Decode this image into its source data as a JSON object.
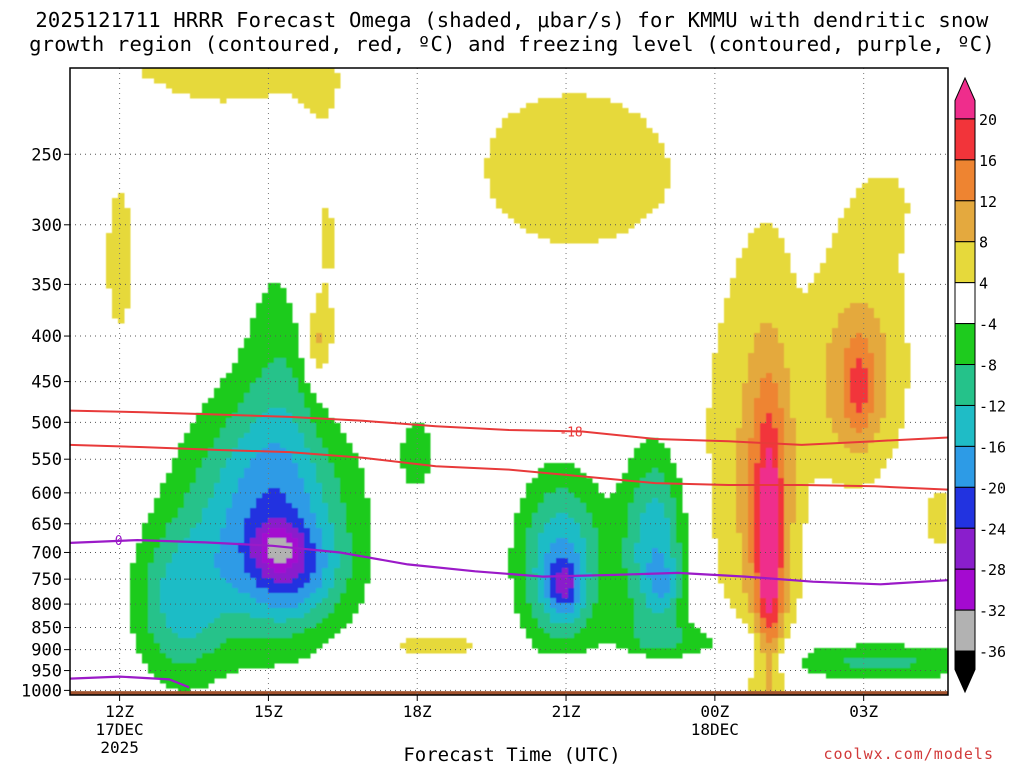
{
  "title": {
    "line1": "2025121711 HRRR Forecast Omega (shaded, μbar/s) for KMMU with dendritic snow",
    "line2": "growth region (contoured, red, ºC) and freezing level (contoured, purple, ºC)"
  },
  "credit": "coolwx.com/models",
  "chart_data": {
    "type": "heatmap",
    "xlabel": "Forecast Time (UTC)",
    "ylabel": "",
    "x_ticks": [
      {
        "label": "12Z",
        "sub": [
          "17DEC",
          "2025"
        ],
        "hour": 0
      },
      {
        "label": "15Z",
        "sub": [],
        "hour": 3
      },
      {
        "label": "18Z",
        "sub": [],
        "hour": 6
      },
      {
        "label": "21Z",
        "sub": [],
        "hour": 9
      },
      {
        "label": "00Z",
        "sub": [
          "18DEC"
        ],
        "hour": 12
      },
      {
        "label": "03Z",
        "sub": [],
        "hour": 15
      }
    ],
    "x_range_hours": [
      -1,
      16.7
    ],
    "y_axis": "pressure (hPa), inverted",
    "y_ticks": [
      250,
      300,
      350,
      400,
      450,
      500,
      550,
      600,
      650,
      700,
      750,
      800,
      850,
      900,
      950,
      1000
    ],
    "y_range": [
      200,
      1012
    ],
    "grid": true,
    "colorbar": {
      "unit": "μbar/s",
      "labels": [
        "20",
        "16",
        "12",
        "8",
        "4",
        "-4",
        "-8",
        "-12",
        "-16",
        "-20",
        "-24",
        "-28",
        "-32",
        "-36"
      ],
      "bands": [
        {
          "range": [
            20,
            99
          ],
          "color": "#ef2d8c"
        },
        {
          "range": [
            16,
            20
          ],
          "color": "#f2343a"
        },
        {
          "range": [
            12,
            16
          ],
          "color": "#ee8431"
        },
        {
          "range": [
            8,
            12
          ],
          "color": "#e4a93e"
        },
        {
          "range": [
            4,
            8
          ],
          "color": "#e6d93b"
        },
        {
          "range": [
            -4,
            4
          ],
          "color": "#ffffff"
        },
        {
          "range": [
            -8,
            -4
          ],
          "color": "#1ecb1e"
        },
        {
          "range": [
            -12,
            -8
          ],
          "color": "#25c28a"
        },
        {
          "range": [
            -16,
            -12
          ],
          "color": "#1fbcc6"
        },
        {
          "range": [
            -20,
            -16
          ],
          "color": "#2d9be6"
        },
        {
          "range": [
            -24,
            -20
          ],
          "color": "#2233e0"
        },
        {
          "range": [
            -28,
            -24
          ],
          "color": "#8a1ecc"
        },
        {
          "range": [
            -32,
            -28
          ],
          "color": "#a40ad0"
        },
        {
          "range": [
            -36,
            -32
          ],
          "color": "#b2b2b2"
        },
        {
          "range": [
            -99,
            -36
          ],
          "color": "#000000"
        }
      ]
    },
    "ground_color": "#a0522d",
    "dgz_contours": {
      "color": "#e83a3a",
      "label": "-18",
      "upper_pressures": [
        485,
        487,
        490,
        493,
        498,
        505,
        510,
        512,
        522,
        525,
        530,
        525,
        520
      ],
      "lower_pressures": [
        530,
        533,
        537,
        540,
        548,
        560,
        565,
        575,
        585,
        588,
        588,
        590,
        595
      ]
    },
    "freezing_level": {
      "color": "#9b1ac8",
      "label": "0",
      "pressures": [
        683,
        678,
        682,
        688,
        700,
        722,
        735,
        745,
        742,
        738,
        745,
        755,
        760,
        752
      ],
      "surface_segment": [
        [
          -1,
          970
        ],
        [
          0,
          965
        ],
        [
          1,
          972
        ],
        [
          1.4,
          992
        ]
      ]
    },
    "omega_features": [
      {
        "hour": 3.2,
        "p": 700,
        "peak": -26,
        "note": "upward motion core"
      },
      {
        "hour": 8.9,
        "p": 760,
        "peak": -25
      },
      {
        "hour": 10.8,
        "p": 745,
        "peak": -22
      },
      {
        "hour": 13.1,
        "p": 700,
        "peak": 22,
        "note": "subsidence max"
      },
      {
        "hour": 14.9,
        "p": 460,
        "peak": 18
      },
      {
        "hour": 4.0,
        "p": 410,
        "peak": 12
      }
    ]
  }
}
